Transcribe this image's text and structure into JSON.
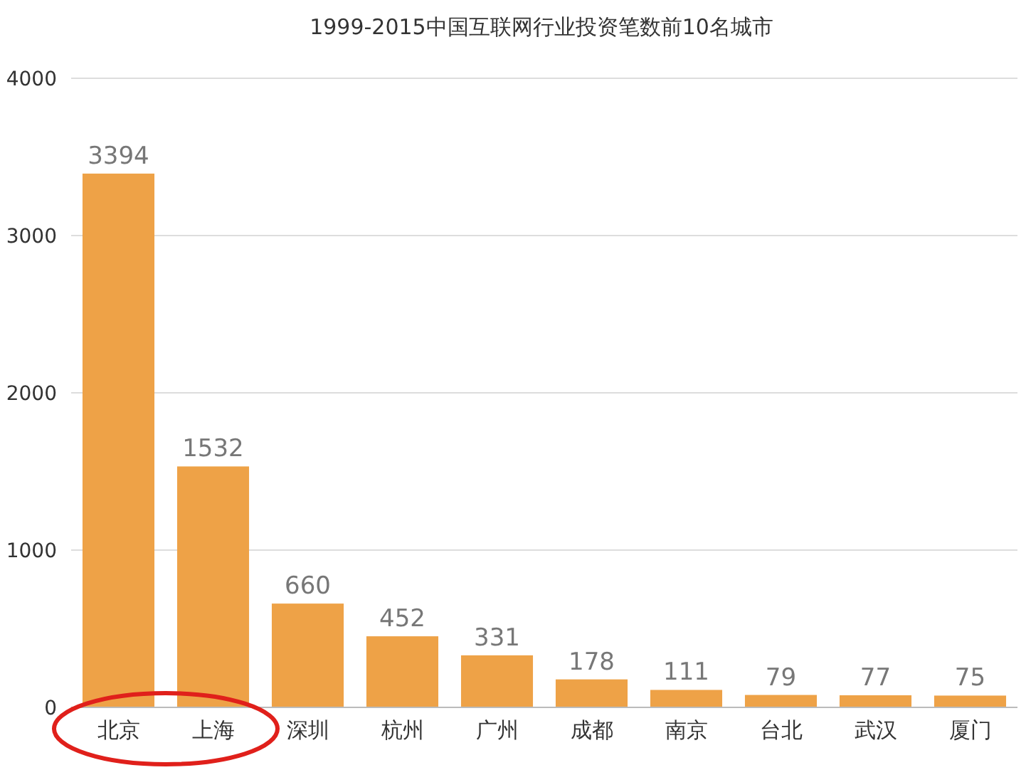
{
  "chart_data": {
    "type": "bar",
    "title": "1999-2015中国互联网行业投资笔数前10名城市",
    "categories": [
      "北京",
      "上海",
      "深圳",
      "杭州",
      "广州",
      "成都",
      "南京",
      "台北",
      "武汉",
      "厦门"
    ],
    "values": [
      3394,
      1532,
      660,
      452,
      331,
      178,
      111,
      79,
      77,
      75
    ],
    "color": "#eea247",
    "ylim": [
      0,
      4000
    ],
    "yticks": [
      0,
      1000,
      2000,
      3000,
      4000
    ],
    "grid": "y",
    "data_labels": true
  }
}
